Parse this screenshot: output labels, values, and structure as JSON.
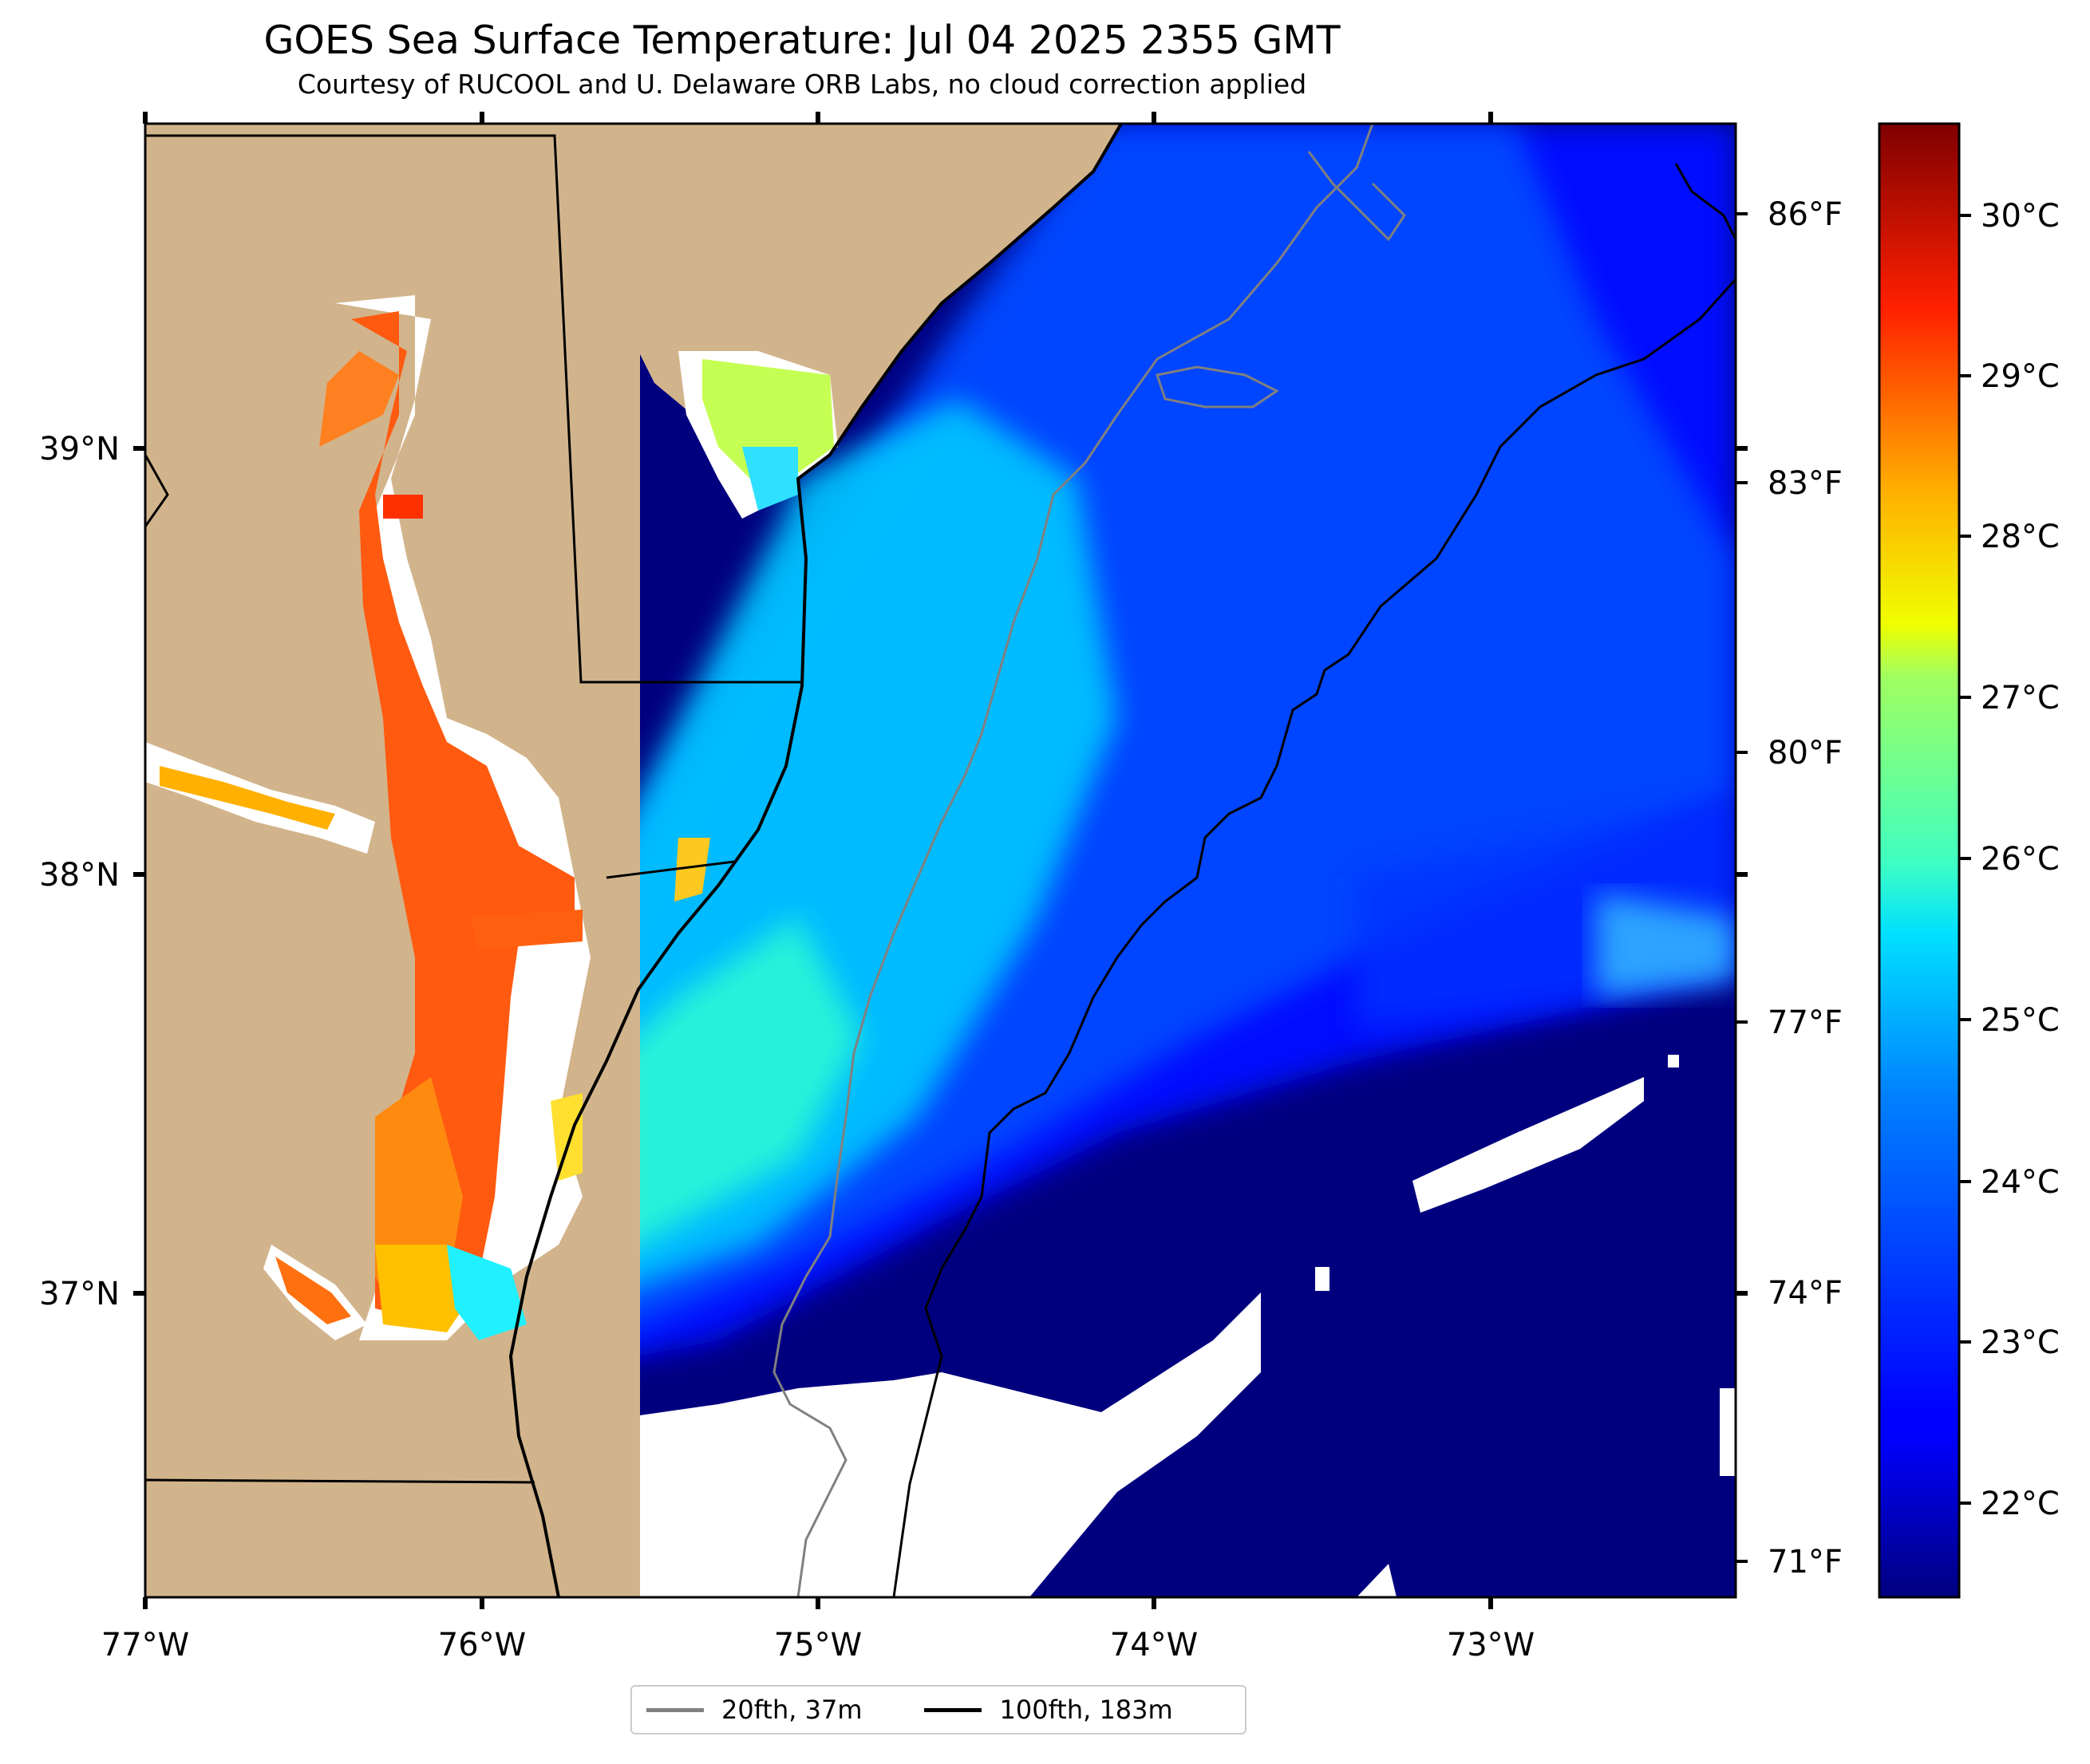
{
  "title": "GOES Sea Surface Temperature: Jul 04 2025 2355 GMT",
  "subtitle": "Courtesy of RUCOOL and U. Delaware ORB Labs, no cloud correction applied",
  "map": {
    "lon_ticks": [
      "77°W",
      "76°W",
      "75°W",
      "74°W",
      "73°W"
    ],
    "lat_ticks": [
      "39°N",
      "38°N",
      "37°N"
    ],
    "colors": {
      "land": "#d2b48c",
      "coastline": "#000000",
      "no_data": "#ffffff",
      "isobath_20fth": "#808080",
      "isobath_100fth": "#000000"
    }
  },
  "colorbar": {
    "colormap": "jet",
    "celsius_ticks": [
      "30°C",
      "29°C",
      "28°C",
      "27°C",
      "26°C",
      "25°C",
      "24°C",
      "23°C",
      "22°C"
    ],
    "fahrenheit_ticks": [
      "86°F",
      "83°F",
      "80°F",
      "77°F",
      "74°F",
      "71°F"
    ]
  },
  "legend": {
    "items": [
      {
        "label": "20fth, 37m",
        "color": "#808080"
      },
      {
        "label": "100fth, 183m",
        "color": "#000000"
      }
    ]
  }
}
